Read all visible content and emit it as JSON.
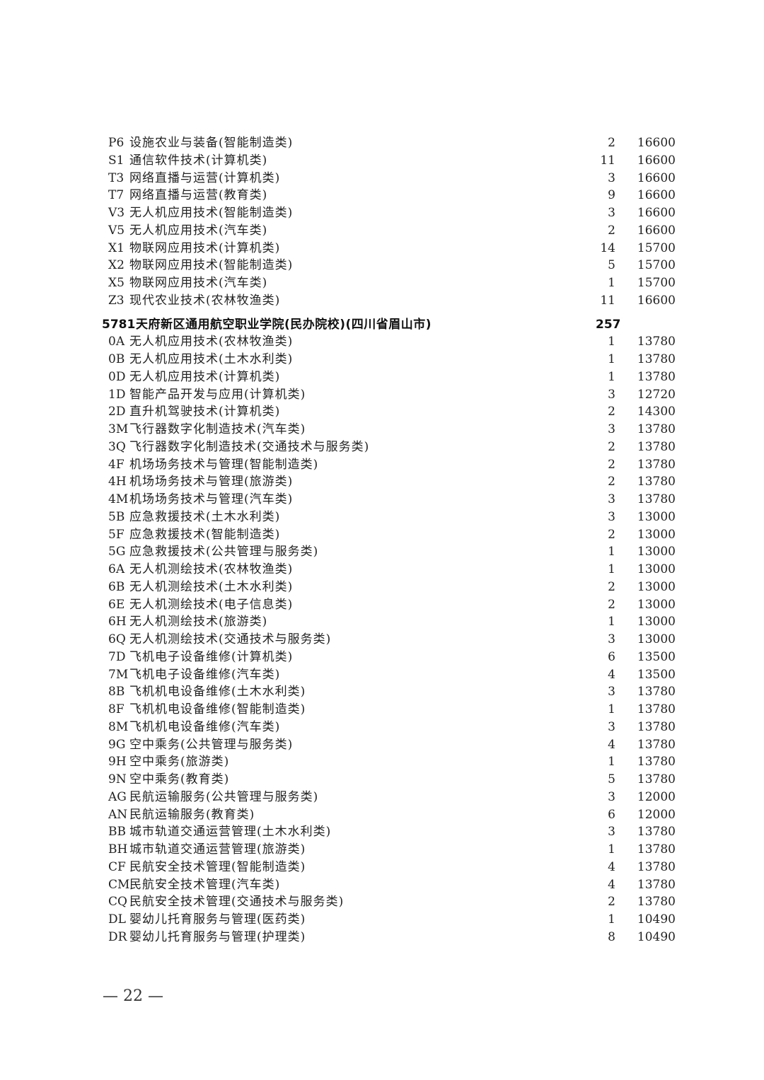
{
  "rows": [
    {
      "code": "P6",
      "name": "设施农业与装备(智能制造类)",
      "count": "2",
      "fee": "16600"
    },
    {
      "code": "S1",
      "name": "通信软件技术(计算机类)",
      "count": "11",
      "fee": "16600"
    },
    {
      "code": "T3",
      "name": "网络直播与运营(计算机类)",
      "count": "3",
      "fee": "16600"
    },
    {
      "code": "T7",
      "name": "网络直播与运营(教育类)",
      "count": "9",
      "fee": "16600"
    },
    {
      "code": "V3",
      "name": "无人机应用技术(智能制造类)",
      "count": "3",
      "fee": "16600"
    },
    {
      "code": "V5",
      "name": "无人机应用技术(汽车类)",
      "count": "2",
      "fee": "16600"
    },
    {
      "code": "X1",
      "name": "物联网应用技术(计算机类)",
      "count": "14",
      "fee": "15700"
    },
    {
      "code": "X2",
      "name": "物联网应用技术(智能制造类)",
      "count": "5",
      "fee": "15700"
    },
    {
      "code": "X5",
      "name": "物联网应用技术(汽车类)",
      "count": "1",
      "fee": "15700"
    },
    {
      "code": "Z3",
      "name": "现代农业技术(农林牧渔类)",
      "count": "11",
      "fee": "16600"
    },
    {
      "type": "school",
      "code": "5781",
      "name": "天府新区通用航空职业学院(民办院校)(四川省眉山市)",
      "count": "257",
      "fee": ""
    },
    {
      "code": "0A",
      "name": "无人机应用技术(农林牧渔类)",
      "count": "1",
      "fee": "13780"
    },
    {
      "code": "0B",
      "name": "无人机应用技术(土木水利类)",
      "count": "1",
      "fee": "13780"
    },
    {
      "code": "0D",
      "name": "无人机应用技术(计算机类)",
      "count": "1",
      "fee": "13780"
    },
    {
      "code": "1D",
      "name": "智能产品开发与应用(计算机类)",
      "count": "3",
      "fee": "12720"
    },
    {
      "code": "2D",
      "name": "直升机驾驶技术(计算机类)",
      "count": "2",
      "fee": "14300"
    },
    {
      "code": "3M",
      "name": "飞行器数字化制造技术(汽车类)",
      "count": "3",
      "fee": "13780"
    },
    {
      "code": "3Q",
      "name": "飞行器数字化制造技术(交通技术与服务类)",
      "count": "2",
      "fee": "13780"
    },
    {
      "code": "4F",
      "name": "机场场务技术与管理(智能制造类)",
      "count": "2",
      "fee": "13780"
    },
    {
      "code": "4H",
      "name": "机场场务技术与管理(旅游类)",
      "count": "2",
      "fee": "13780"
    },
    {
      "code": "4M",
      "name": "机场场务技术与管理(汽车类)",
      "count": "3",
      "fee": "13780"
    },
    {
      "code": "5B",
      "name": "应急救援技术(土木水利类)",
      "count": "3",
      "fee": "13000"
    },
    {
      "code": "5F",
      "name": "应急救援技术(智能制造类)",
      "count": "2",
      "fee": "13000"
    },
    {
      "code": "5G",
      "name": "应急救援技术(公共管理与服务类)",
      "count": "1",
      "fee": "13000"
    },
    {
      "code": "6A",
      "name": "无人机测绘技术(农林牧渔类)",
      "count": "1",
      "fee": "13000"
    },
    {
      "code": "6B",
      "name": "无人机测绘技术(土木水利类)",
      "count": "2",
      "fee": "13000"
    },
    {
      "code": "6E",
      "name": "无人机测绘技术(电子信息类)",
      "count": "2",
      "fee": "13000"
    },
    {
      "code": "6H",
      "name": "无人机测绘技术(旅游类)",
      "count": "1",
      "fee": "13000"
    },
    {
      "code": "6Q",
      "name": "无人机测绘技术(交通技术与服务类)",
      "count": "3",
      "fee": "13000"
    },
    {
      "code": "7D",
      "name": "飞机电子设备维修(计算机类)",
      "count": "6",
      "fee": "13500"
    },
    {
      "code": "7M",
      "name": "飞机电子设备维修(汽车类)",
      "count": "4",
      "fee": "13500"
    },
    {
      "code": "8B",
      "name": "飞机机电设备维修(土木水利类)",
      "count": "3",
      "fee": "13780"
    },
    {
      "code": "8F",
      "name": "飞机机电设备维修(智能制造类)",
      "count": "1",
      "fee": "13780"
    },
    {
      "code": "8M",
      "name": "飞机机电设备维修(汽车类)",
      "count": "3",
      "fee": "13780"
    },
    {
      "code": "9G",
      "name": "空中乘务(公共管理与服务类)",
      "count": "4",
      "fee": "13780"
    },
    {
      "code": "9H",
      "name": "空中乘务(旅游类)",
      "count": "1",
      "fee": "13780"
    },
    {
      "code": "9N",
      "name": "空中乘务(教育类)",
      "count": "5",
      "fee": "13780"
    },
    {
      "code": "AG",
      "name": "民航运输服务(公共管理与服务类)",
      "count": "3",
      "fee": "12000"
    },
    {
      "code": "AN",
      "name": "民航运输服务(教育类)",
      "count": "6",
      "fee": "12000"
    },
    {
      "code": "BB",
      "name": "城市轨道交通运营管理(土木水利类)",
      "count": "3",
      "fee": "13780"
    },
    {
      "code": "BH",
      "name": "城市轨道交通运营管理(旅游类)",
      "count": "1",
      "fee": "13780"
    },
    {
      "code": "CF",
      "name": "民航安全技术管理(智能制造类)",
      "count": "4",
      "fee": "13780"
    },
    {
      "code": "CM",
      "name": "民航安全技术管理(汽车类)",
      "count": "4",
      "fee": "13780"
    },
    {
      "code": "CQ",
      "name": "民航安全技术管理(交通技术与服务类)",
      "count": "2",
      "fee": "13780"
    },
    {
      "code": "DL",
      "name": "婴幼儿托育服务与管理(医药类)",
      "count": "1",
      "fee": "10490"
    },
    {
      "code": "DR",
      "name": "婴幼儿托育服务与管理(护理类)",
      "count": "8",
      "fee": "10490"
    }
  ],
  "footer": {
    "page": "— 22 —"
  }
}
